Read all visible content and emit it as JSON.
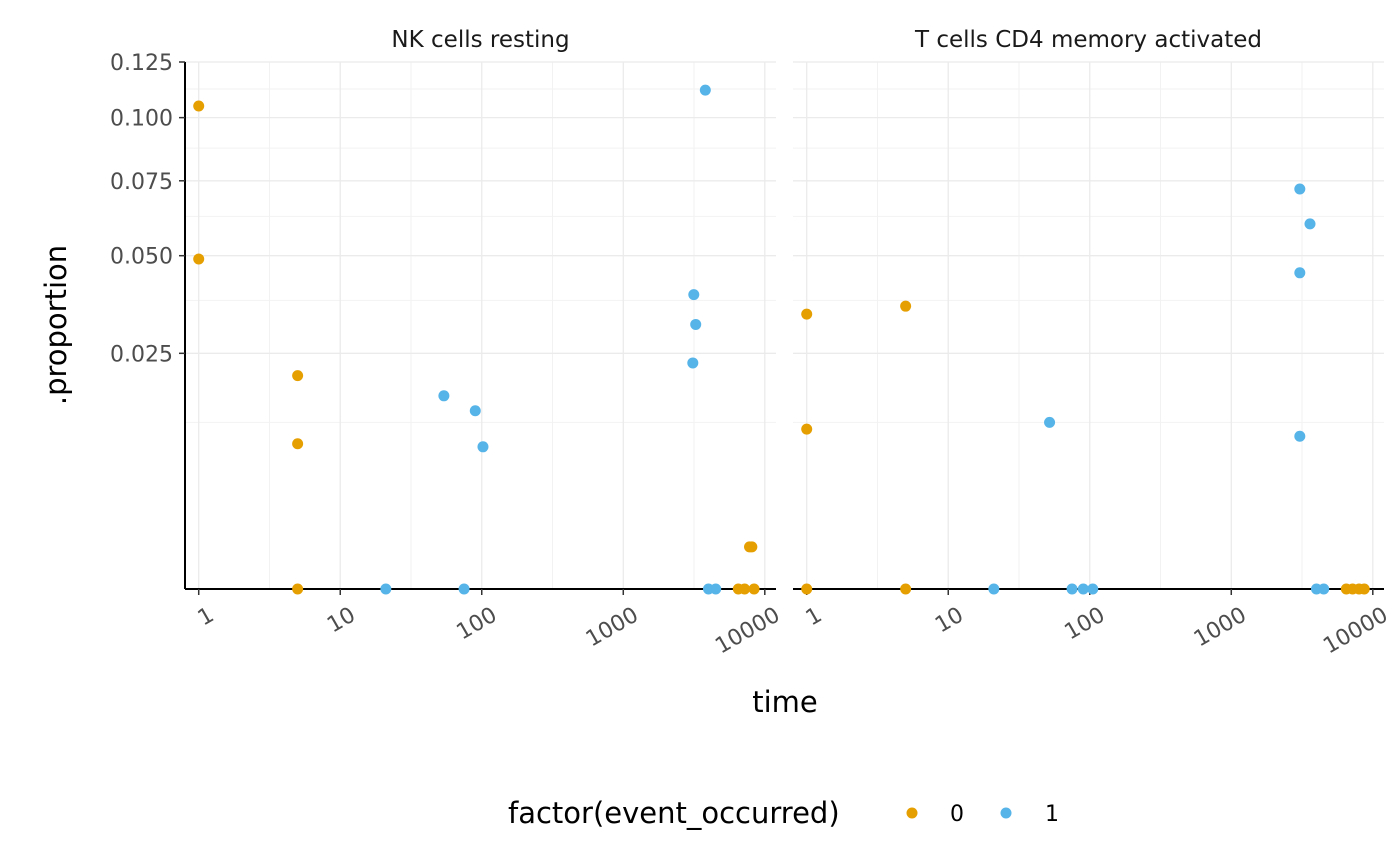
{
  "chart_data": {
    "type": "scatter",
    "facets": [
      {
        "title": "NK cells resting",
        "points": [
          {
            "x": 1,
            "y": 0.105,
            "group": "0"
          },
          {
            "x": 1,
            "y": 0.049,
            "group": "0"
          },
          {
            "x": 5,
            "y": 0.0205,
            "group": "0"
          },
          {
            "x": 5,
            "y": 0.0095,
            "group": "0"
          },
          {
            "x": 5,
            "y": 0.0,
            "group": "0"
          },
          {
            "x": 21,
            "y": 0.0,
            "group": "1"
          },
          {
            "x": 54,
            "y": 0.0168,
            "group": "1"
          },
          {
            "x": 75,
            "y": 0.0,
            "group": "1"
          },
          {
            "x": 90,
            "y": 0.0143,
            "group": "1"
          },
          {
            "x": 102,
            "y": 0.0091,
            "group": "1"
          },
          {
            "x": 3100,
            "y": 0.023,
            "group": "1"
          },
          {
            "x": 3150,
            "y": 0.039,
            "group": "1"
          },
          {
            "x": 3250,
            "y": 0.0315,
            "group": "1"
          },
          {
            "x": 3800,
            "y": 0.112,
            "group": "1"
          },
          {
            "x": 4000,
            "y": 0.0,
            "group": "1"
          },
          {
            "x": 4500,
            "y": 0.0,
            "group": "1"
          },
          {
            "x": 6500,
            "y": 0.0,
            "group": "0"
          },
          {
            "x": 7200,
            "y": 0.0,
            "group": "0"
          },
          {
            "x": 7800,
            "y": 0.0008,
            "group": "0"
          },
          {
            "x": 8100,
            "y": 0.0008,
            "group": "0"
          },
          {
            "x": 8400,
            "y": 0.0,
            "group": "0"
          }
        ]
      },
      {
        "title": "T cells CD4 memory activated",
        "points": [
          {
            "x": 1,
            "y": 0.034,
            "group": "0"
          },
          {
            "x": 1,
            "y": 0.0115,
            "group": "0"
          },
          {
            "x": 1,
            "y": 0.0,
            "group": "0"
          },
          {
            "x": 5,
            "y": 0.036,
            "group": "0"
          },
          {
            "x": 5,
            "y": 0.0,
            "group": "0"
          },
          {
            "x": 21,
            "y": 0.0,
            "group": "1"
          },
          {
            "x": 52,
            "y": 0.0125,
            "group": "1"
          },
          {
            "x": 75,
            "y": 0.0,
            "group": "1"
          },
          {
            "x": 90,
            "y": 0.0,
            "group": "1"
          },
          {
            "x": 105,
            "y": 0.0,
            "group": "1"
          },
          {
            "x": 3050,
            "y": 0.0105,
            "group": "1"
          },
          {
            "x": 3050,
            "y": 0.045,
            "group": "1"
          },
          {
            "x": 3050,
            "y": 0.072,
            "group": "1"
          },
          {
            "x": 3600,
            "y": 0.06,
            "group": "1"
          },
          {
            "x": 4000,
            "y": 0.0,
            "group": "1"
          },
          {
            "x": 4500,
            "y": 0.0,
            "group": "1"
          },
          {
            "x": 6500,
            "y": 0.0,
            "group": "0"
          },
          {
            "x": 7200,
            "y": 0.0,
            "group": "0"
          },
          {
            "x": 8000,
            "y": 0.0,
            "group": "0"
          },
          {
            "x": 8700,
            "y": 0.0,
            "group": "0"
          }
        ]
      }
    ],
    "xlabel": "time",
    "ylabel": ".proportion",
    "x_scale": "log10",
    "y_scale": "sqrt",
    "xlim": [
      0.8,
      12000
    ],
    "ylim": [
      0,
      0.125
    ],
    "x_ticks": [
      1,
      10,
      100,
      1000,
      10000
    ],
    "x_tick_labels": [
      "1",
      "10",
      "100",
      "1000",
      "10000"
    ],
    "y_ticks": [
      0.025,
      0.05,
      0.075,
      0.1,
      0.125
    ],
    "y_tick_labels": [
      "0.025",
      "0.050",
      "0.075",
      "0.100",
      "0.125"
    ],
    "legend": {
      "title": "factor(event_occurred)",
      "position": "bottom",
      "items": [
        {
          "label": "0",
          "color": "#E69F00"
        },
        {
          "label": "1",
          "color": "#56B4E9"
        }
      ]
    },
    "grid": true
  }
}
